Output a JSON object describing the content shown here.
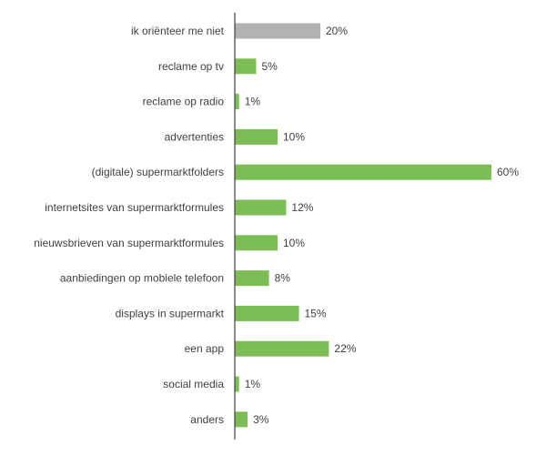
{
  "chart_data": {
    "type": "bar",
    "orientation": "horizontal",
    "categories": [
      "ik oriënteer me niet",
      "reclame op tv",
      "reclame op radio",
      "advertenties",
      "(digitale) supermarktfolders",
      "internetsites van supermarktformules",
      "nieuwsbrieven van supermarktformules",
      "aanbiedingen op mobiele telefoon",
      "displays in supermarkt",
      "een app",
      "social media",
      "anders"
    ],
    "values": [
      20,
      5,
      1,
      10,
      60,
      12,
      10,
      8,
      15,
      22,
      1,
      3
    ],
    "value_labels": [
      "20%",
      "5%",
      "1%",
      "10%",
      "60%",
      "12%",
      "10%",
      "8%",
      "15%",
      "22%",
      "1%",
      "3%"
    ],
    "bar_colors": [
      "#b0b2b4",
      "#7cbd56",
      "#7cbd56",
      "#7cbd56",
      "#7cbd56",
      "#7cbd56",
      "#7cbd56",
      "#7cbd56",
      "#7cbd56",
      "#7cbd56",
      "#7cbd56",
      "#7cbd56"
    ],
    "xlim": [
      0,
      60
    ],
    "grid": false,
    "axis_color": "#404040",
    "text_color": "#404040"
  }
}
